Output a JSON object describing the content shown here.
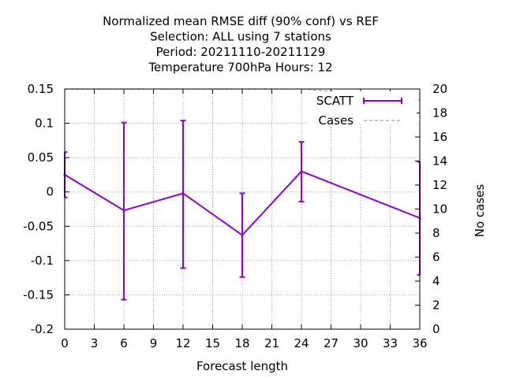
{
  "chart_data": {
    "type": "line",
    "title_lines": [
      "Normalized mean RMSE diff (90% conf) vs REF",
      "Selection: ALL using     7 stations",
      "Period: 20211110-20211129",
      "Temperature 700hPa   Hours:  12"
    ],
    "xlabel": "Forecast length",
    "ylabel": "",
    "y2label": "No cases",
    "xlim": [
      0,
      36
    ],
    "ylim": [
      -0.2,
      0.15
    ],
    "y2lim": [
      0,
      20
    ],
    "x_ticks": [
      0,
      3,
      6,
      9,
      12,
      15,
      18,
      21,
      24,
      27,
      30,
      33,
      36
    ],
    "y_ticks": [
      -0.2,
      -0.15,
      -0.1,
      -0.05,
      0,
      0.05,
      0.1,
      0.15
    ],
    "y_tick_labels": [
      "-0.2",
      "-0.15",
      "-0.1",
      "-0.05",
      "0",
      "0.05",
      "0.1",
      "0.15"
    ],
    "y2_ticks": [
      0,
      2,
      4,
      6,
      8,
      10,
      12,
      14,
      16,
      18,
      20
    ],
    "grid": true,
    "legend_position": "top-right",
    "colors": {
      "scatt": "#9400d3",
      "cases": "#a0a0a0"
    },
    "series": [
      {
        "name": "SCATT",
        "axis": "y",
        "style": "line-errorbars",
        "x": [
          0,
          6,
          12,
          18,
          24,
          36
        ],
        "y": [
          0.025,
          -0.027,
          -0.002,
          -0.063,
          0.03,
          -0.038
        ],
        "err_low": [
          -0.008,
          -0.157,
          -0.111,
          -0.124,
          -0.014,
          -0.121
        ],
        "err_high": [
          0.058,
          0.101,
          0.104,
          -0.002,
          0.073,
          0.044
        ]
      },
      {
        "name": "Cases",
        "axis": "y2",
        "style": "dashed",
        "x": [
          0,
          6,
          12,
          18,
          24,
          30,
          36
        ],
        "y": [
          20,
          20,
          20,
          20,
          20,
          19.6,
          19.1
        ]
      }
    ]
  }
}
